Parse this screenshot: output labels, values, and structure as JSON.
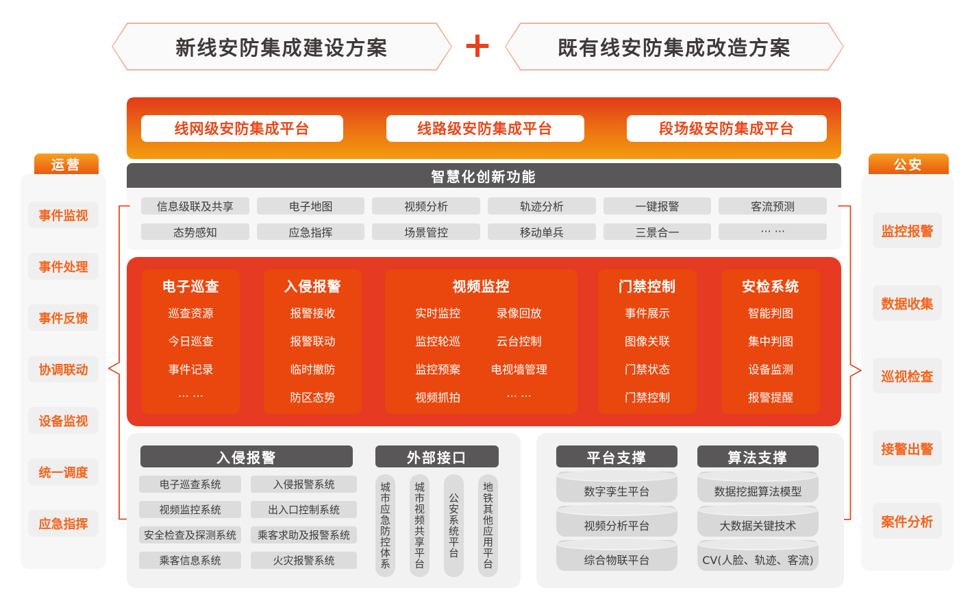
{
  "colors": {
    "accent_orange": "#e8481c",
    "core_background": "#e73a22",
    "core_column_background": "#ea470e",
    "gradient_bar_top": "#e23a18",
    "gradient_bar_bottom": "#f39d0e",
    "header_dark_gray": "#595757",
    "pill_gray": "#e0e0e0",
    "panel_light_gray": "#f2f2f2",
    "sidebar_text_orange": "#f4631c",
    "text_dark": "#3e3a39"
  },
  "banners": {
    "left": "新线安防集成建设方案",
    "plus": "+",
    "right": "既有线安防集成改造方案"
  },
  "platform_bar": {
    "items": [
      "线网级安防集成平台",
      "线路级安防集成平台",
      "段场级安防集成平台"
    ]
  },
  "smart": {
    "title": "智慧化创新功能",
    "items": [
      "信息级联及共享",
      "电子地图",
      "视频分析",
      "轨迹分析",
      "一键报警",
      "客流预测",
      "态势感知",
      "应急指挥",
      "场景管控",
      "移动单兵",
      "三景合一",
      "··· ···"
    ]
  },
  "sidebar_left": {
    "title": "运营",
    "items": [
      "事件监视",
      "事件处理",
      "事件反馈",
      "协调联动",
      "设备监视",
      "统一调度",
      "应急指挥"
    ]
  },
  "sidebar_right": {
    "title": "公安",
    "items": [
      "监控报警",
      "数据收集",
      "巡视检查",
      "接警出警",
      "案件分析"
    ]
  },
  "core": {
    "columns": [
      {
        "title": "电子巡查",
        "groups": [
          [
            "巡查资源",
            "今日巡查",
            "事件记录",
            "··· ···"
          ]
        ]
      },
      {
        "title": "入侵报警",
        "groups": [
          [
            "报警接收",
            "报警联动",
            "临时撤防",
            "防区态势"
          ]
        ]
      },
      {
        "title": "视频监控",
        "groups": [
          [
            "实时监控",
            "监控轮巡",
            "监控预案",
            "视频抓拍"
          ],
          [
            "录像回放",
            "云台控制",
            "电视墙管理",
            "··· ···"
          ]
        ]
      },
      {
        "title": "门禁控制",
        "groups": [
          [
            "事件展示",
            "图像关联",
            "门禁状态",
            "门禁控制"
          ]
        ]
      },
      {
        "title": "安检系统",
        "groups": [
          [
            "智能判图",
            "集中判图",
            "设备监测",
            "报警提醒"
          ]
        ]
      }
    ]
  },
  "bottom_left": {
    "systems": {
      "title": "入侵报警",
      "items": [
        "电子巡查系统",
        "入侵报警系统",
        "视频监控系统",
        "出入口控制系统",
        "安全检查及探测系统",
        "乘客求助及报警系统",
        "乘客信息系统",
        "火灾报警系统"
      ]
    },
    "external": {
      "title": "外部接口",
      "items": [
        "城市应急防控体系",
        "城市视频共享平台",
        "公安系统平台",
        "地铁其他应用平台"
      ]
    }
  },
  "bottom_right": {
    "platform": {
      "title": "平台支撑",
      "items": [
        "数字孪生平台",
        "视频分析平台",
        "综合物联平台"
      ]
    },
    "algorithm": {
      "title": "算法支撑",
      "items": [
        "数据挖掘算法模型",
        "大数据关键技术",
        "CV(人脸、轨迹、客流)"
      ]
    }
  }
}
